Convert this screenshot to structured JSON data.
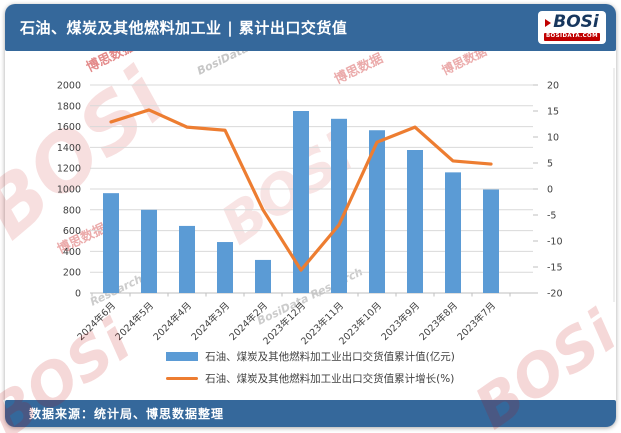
{
  "header": {
    "title": "石油、煤炭及其他燃料加工业 | 累计出口交货值",
    "logo_text": "BOSi",
    "logo_site": "BOSIDATA.COM"
  },
  "footer": {
    "source": "数据来源：统计局、博思数据整理"
  },
  "watermarks": {
    "logo": "BOSi",
    "cn": "博思数据",
    "en": "BosiData Research",
    "en_short": "Research"
  },
  "colors": {
    "header_bg": "#35689B",
    "bar": "#5B9BD5",
    "line": "#ED7D31",
    "logo_red": "#C00000",
    "logo_navy": "#17375E",
    "gridline": "#D9D9D9",
    "axis": "#BFBFBF"
  },
  "chart_data": {
    "type": "bar",
    "subtype": "combo-bar-line-dual-axis",
    "categories": [
      "2024年6月",
      "2024年5月",
      "2024年4月",
      "2024年3月",
      "2024年2月",
      "2023年12月",
      "2023年11月",
      "2023年10月",
      "2023年9月",
      "2023年8月",
      "2023年7月"
    ],
    "series": [
      {
        "name": "石油、煤炭及其他燃料加工业出口交货值累计值(亿元)",
        "type": "bar",
        "axis": "left",
        "color": "#5B9BD5",
        "values": [
          960,
          800,
          645,
          490,
          318,
          1750,
          1675,
          1565,
          1375,
          1160,
          995
        ]
      },
      {
        "name": "石油、煤炭及其他燃料加工业出口交货值累计增长(%)",
        "type": "line",
        "axis": "right",
        "color": "#ED7D31",
        "values": [
          12.9,
          15.2,
          11.9,
          11.3,
          -4.0,
          -15.6,
          -6.9,
          9.0,
          11.9,
          5.4,
          4.8
        ]
      }
    ],
    "left_axis": {
      "min": 0,
      "max": 2000,
      "step": 200
    },
    "right_axis": {
      "min": -20,
      "max": 20,
      "step": 5
    },
    "grid": true,
    "legend_position": "bottom"
  }
}
